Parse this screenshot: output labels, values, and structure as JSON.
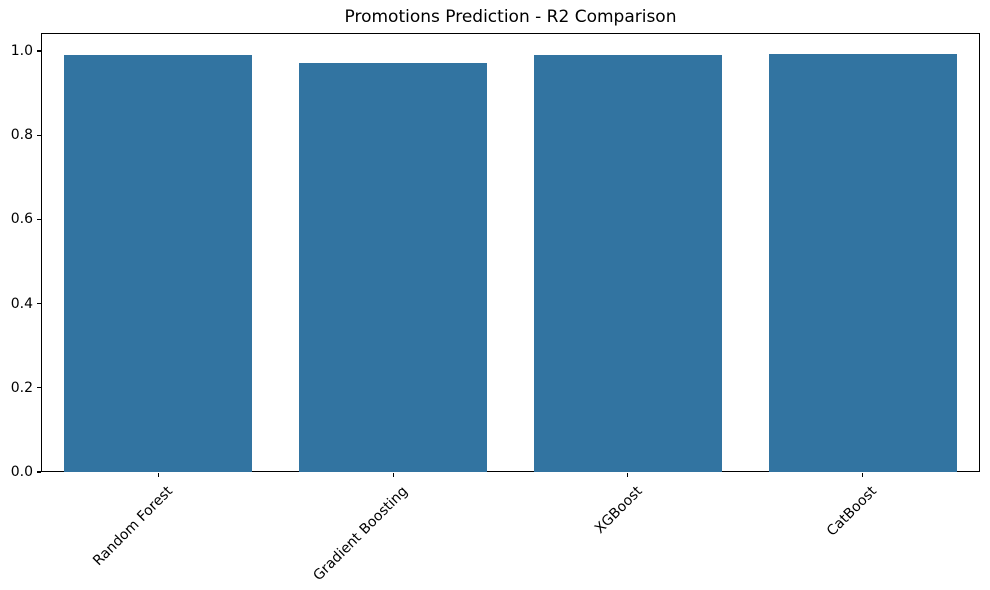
{
  "chart_data": {
    "type": "bar",
    "title": "Promotions Prediction - R2 Comparison",
    "categories": [
      "Random Forest",
      "Gradient Boosting",
      "XGBoost",
      "CatBoost"
    ],
    "values": [
      0.99,
      0.971,
      0.99,
      0.993
    ],
    "xlabel": "",
    "ylabel": "",
    "ylim": [
      0,
      1.043
    ],
    "ytick_labels": [
      "0.0",
      "0.2",
      "0.4",
      "0.6",
      "0.8",
      "1.0"
    ],
    "ytick_values": [
      0.0,
      0.2,
      0.4,
      0.6,
      0.8,
      1.0
    ],
    "x_tick_rotation_deg": 45,
    "grid": false,
    "legend_position": "none",
    "bar_color": "#3274a1",
    "spine_color": "#000000",
    "text_color": "#000000",
    "background_color": "#ffffff"
  }
}
